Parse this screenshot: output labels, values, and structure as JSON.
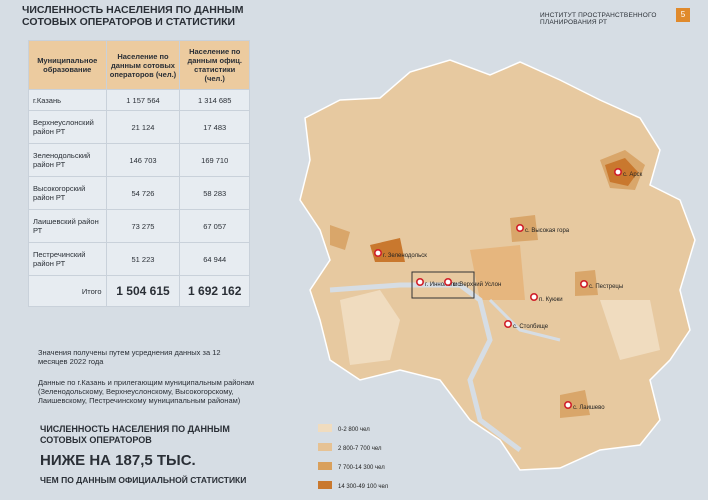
{
  "header": {
    "title": "ЧИСЛЕННОСТЬ НАСЕЛЕНИЯ ПО ДАННЫМ СОТОВЫХ ОПЕРАТОРОВ И СТАТИСТИКИ",
    "institute": "ИНСТИТУТ ПРОСТРАНСТВЕННОГО ПЛАНИРОВАНИЯ РТ",
    "page": "5"
  },
  "table": {
    "columns": [
      "Муниципальное образование",
      "Население по данным сотовых операторов (чел.)",
      "Население по данным офиц. статистики (чел.)"
    ],
    "rows": [
      [
        "г.Казань",
        "1 157 564",
        "1 314 685"
      ],
      [
        "Верхнеуслонский район РТ",
        "21 124",
        "17 483"
      ],
      [
        "Зеленодольский район РТ",
        "146 703",
        "169 710"
      ],
      [
        "Высокогорский район РТ",
        "54 726",
        "58 283"
      ],
      [
        "Лаишевский район РТ",
        "73 275",
        "67 057"
      ],
      [
        "Пестречинский район РТ",
        "51 223",
        "64 944"
      ]
    ],
    "total": [
      "Итого",
      "1 504 615",
      "1 692 162"
    ]
  },
  "notes": [
    "Значения получены путем усреднения данных за 12 месяцев 2022 года",
    "Данные по г.Казань и прилегающим муниципальным районам (Зеленодольскому, Верхнеуслонскому, Высокогорскому, Лаишевскому, Пестречинскому муниципальным районам)"
  ],
  "callout": {
    "line1": "ЧИСЛЕННОСТЬ НАСЕЛЕНИЯ ПО ДАННЫМ СОТОВЫХ ОПЕРАТОРОВ",
    "line2": "НИЖЕ НА 187,5 ТЫС.",
    "line3": "ЧЕМ ПО ДАННЫМ ОФИЦИАЛЬНОЙ СТАТИСТИКИ"
  },
  "map": {
    "places": [
      "с. Арск",
      "с. Высокая гора",
      "г. Зеленодольск",
      "г. Иннополис",
      "с. Верхний Услон",
      "п. Куюки",
      "с. Пестрецы",
      "с. Столбище",
      "с. Лаишево"
    ],
    "legend": [
      "0-2 800 чел",
      "2 800-7 700 чел",
      "7 700-14 300 чел",
      "14 300-49 100 чел"
    ]
  }
}
